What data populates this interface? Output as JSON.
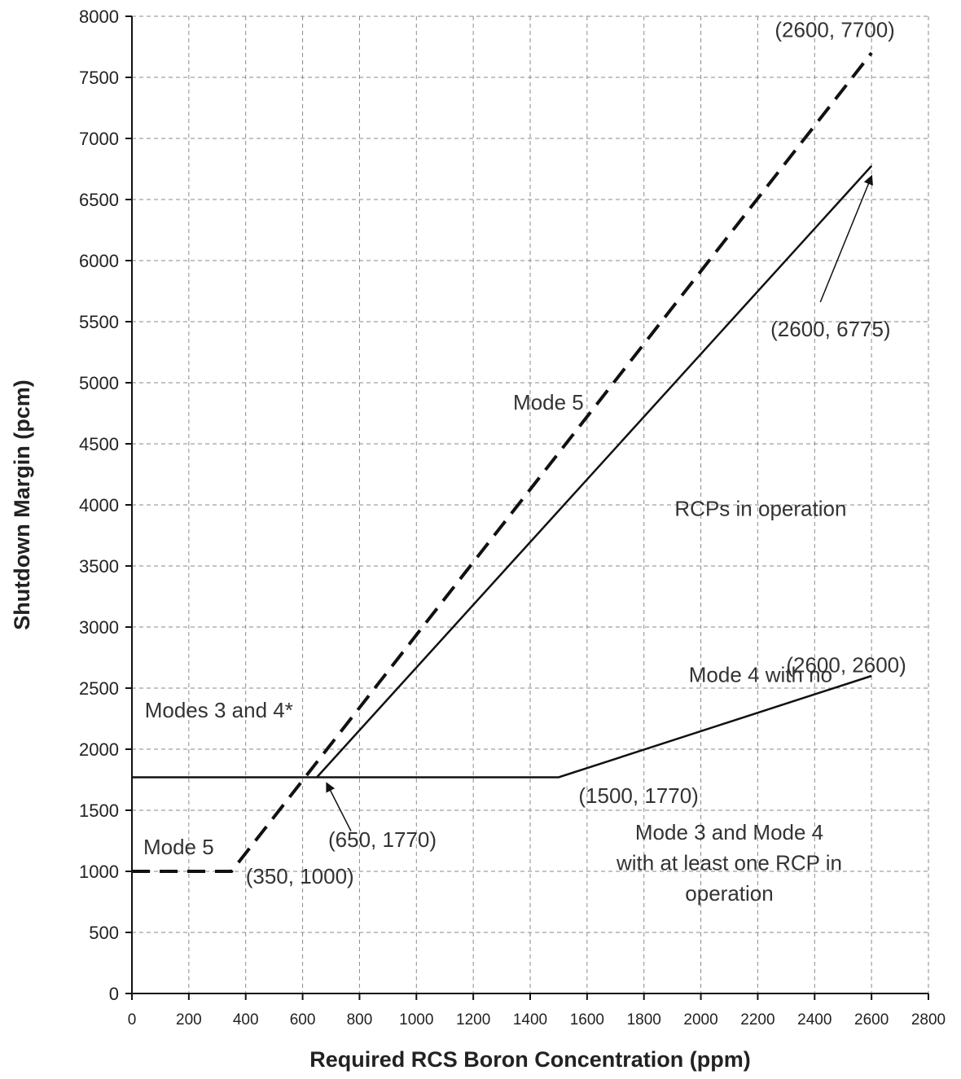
{
  "chart_data": {
    "type": "line",
    "title": "",
    "xlabel": "Required RCS Boron Concentration (ppm)",
    "ylabel": "Shutdown Margin (pcm)",
    "xlim": [
      0,
      2800
    ],
    "ylim": [
      0,
      8000
    ],
    "x_ticks": [
      0,
      200,
      400,
      600,
      800,
      1000,
      1200,
      1400,
      1600,
      1800,
      2000,
      2200,
      2400,
      2600,
      2800
    ],
    "y_ticks": [
      0,
      500,
      1000,
      1500,
      2000,
      2500,
      3000,
      3500,
      4000,
      4500,
      5000,
      5500,
      6000,
      6500,
      7000,
      7500,
      8000
    ],
    "grid": true,
    "series": [
      {
        "style": "dashed",
        "color": "#111111",
        "points": [
          [
            0,
            1000
          ],
          [
            350,
            1000
          ],
          [
            2600,
            7700
          ]
        ]
      },
      {
        "style": "solid",
        "color": "#111111",
        "points": [
          [
            0,
            1770
          ],
          [
            1500,
            1770
          ],
          [
            2600,
            2600
          ]
        ]
      },
      {
        "style": "solid",
        "color": "#111111",
        "points": [
          [
            650,
            1770
          ],
          [
            2600,
            6775
          ]
        ]
      }
    ],
    "annotations": [
      {
        "id": "ann-2600-7700",
        "text": "(2600, 7700)",
        "x": 2260,
        "y": 7830,
        "anchor": "start"
      },
      {
        "id": "ann-2600-6775",
        "text": "(2600, 6775)",
        "x": 2245,
        "y": 5380,
        "anchor": "start"
      },
      {
        "id": "ann-mode5-upper",
        "text": "Mode 5",
        "x": 1340,
        "y": 4780,
        "anchor": "start"
      },
      {
        "id": "ann-mode4-norcp-1",
        "text": "Mode 4 with no",
        "x": 2210,
        "y": 2550,
        "anchor": "middle",
        "line_of": "ann-mode4-norcp",
        "y_line": 4160
      },
      {
        "id": "ann-mode4-norcp-2",
        "text": "RCPs in operation",
        "x": 2210,
        "y": 3910,
        "anchor": "middle"
      },
      {
        "id": "ann-2600-2600",
        "text": "(2600, 2600)",
        "x": 2300,
        "y": 2630,
        "anchor": "start"
      },
      {
        "id": "ann-modes-3-4",
        "text": "Modes 3 and 4*",
        "x": 45,
        "y": 2260,
        "anchor": "start"
      },
      {
        "id": "ann-1500-1770",
        "text": "(1500, 1770)",
        "x": 1570,
        "y": 1560,
        "anchor": "start"
      },
      {
        "id": "ann-650-1770",
        "text": "(650, 1770)",
        "x": 690,
        "y": 1200,
        "anchor": "start"
      },
      {
        "id": "ann-mode5-lower",
        "text": "Mode 5",
        "x": 40,
        "y": 1140,
        "anchor": "start"
      },
      {
        "id": "ann-350-1000",
        "text": "(350, 1000)",
        "x": 400,
        "y": 900,
        "anchor": "start"
      },
      {
        "id": "ann-mode34-rcp-1",
        "text": "Mode 3 and Mode 4",
        "x": 2100,
        "y": 1260,
        "anchor": "middle"
      },
      {
        "id": "ann-mode34-rcp-2",
        "text": "with at least one RCP in",
        "x": 2100,
        "y": 1010,
        "anchor": "middle"
      },
      {
        "id": "ann-mode34-rcp-3",
        "text": "operation",
        "x": 2100,
        "y": 760,
        "anchor": "middle"
      }
    ],
    "arrows": [
      {
        "id": "arrow-6775",
        "from": [
          2420,
          5660
        ],
        "to": [
          2600,
          6690
        ]
      },
      {
        "id": "arrow-650",
        "from": [
          770,
          1330
        ],
        "to": [
          685,
          1720
        ]
      }
    ]
  }
}
